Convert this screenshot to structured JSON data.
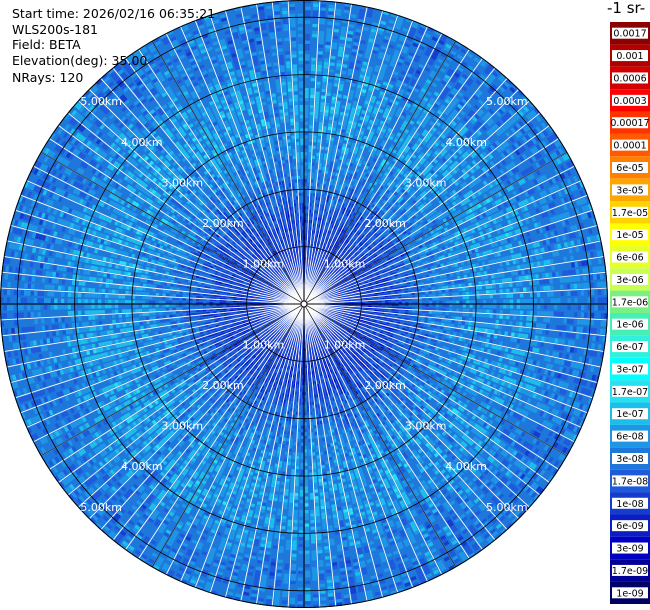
{
  "info": {
    "start_time": "Start time: 2026/02/16 06:35:21",
    "station": "WLS200s-181",
    "field": "Field: BETA",
    "elevation": "Elevation(deg): 35.00",
    "nrays": "NRays: 120"
  },
  "colorbar": {
    "unit_label": "-1 sr-",
    "entries": [
      {
        "label": "0.0017",
        "color": "#8b0000"
      },
      {
        "label": "0.001",
        "color": "#b00000"
      },
      {
        "label": "0.0006",
        "color": "#d20000"
      },
      {
        "label": "0.0003",
        "color": "#ff0000"
      },
      {
        "label": "0.00017",
        "color": "#ff3300"
      },
      {
        "label": "0.0001",
        "color": "#ff5a00"
      },
      {
        "label": "6e-05",
        "color": "#ff8000"
      },
      {
        "label": "3e-05",
        "color": "#ffa500"
      },
      {
        "label": "1.7e-05",
        "color": "#ffd200"
      },
      {
        "label": "1e-05",
        "color": "#ffff00"
      },
      {
        "label": "6e-06",
        "color": "#e6ff2a"
      },
      {
        "label": "3e-06",
        "color": "#c8ff50"
      },
      {
        "label": "1.7e-06",
        "color": "#78f082"
      },
      {
        "label": "1e-06",
        "color": "#46f0b4"
      },
      {
        "label": "6e-07",
        "color": "#32f0dc"
      },
      {
        "label": "3e-07",
        "color": "#00ffff"
      },
      {
        "label": "1.7e-07",
        "color": "#28e1f0"
      },
      {
        "label": "1e-07",
        "color": "#1ebeeb"
      },
      {
        "label": "6e-08",
        "color": "#1e96e6"
      },
      {
        "label": "3e-08",
        "color": "#1e78dc"
      },
      {
        "label": "1.7e-08",
        "color": "#1e5adc"
      },
      {
        "label": "1e-08",
        "color": "#143ccd"
      },
      {
        "label": "6e-09",
        "color": "#0a1ec3"
      },
      {
        "label": "3e-09",
        "color": "#0000c3"
      },
      {
        "label": "1.7e-09",
        "color": "#000096"
      },
      {
        "label": "1e-09",
        "color": "#000064"
      }
    ]
  },
  "chart_data": {
    "type": "heatmap",
    "projection": "polar-ppi",
    "field": "BETA",
    "elevation_deg": 35.0,
    "n_rays": 120,
    "max_range_km": 5.3,
    "rings_km": [
      1.0,
      2.0,
      3.0,
      4.0,
      5.0
    ],
    "ring_labels": [
      "1.00km",
      "2.00km",
      "3.00km",
      "4.00km",
      "5.00km"
    ],
    "spokes_deg": [
      0,
      30,
      60,
      90,
      120,
      150,
      180,
      210,
      240,
      270,
      300,
      330
    ],
    "radial_profile": [
      {
        "range_km": 0.0,
        "class_index": 23
      },
      {
        "range_km": 0.8,
        "class_index": 22
      },
      {
        "range_km": 1.5,
        "class_index": 21
      },
      {
        "range_km": 2.2,
        "class_index": 19
      },
      {
        "range_km": 3.0,
        "class_index": 18
      },
      {
        "range_km": 3.8,
        "class_index": 18
      },
      {
        "range_km": 4.6,
        "class_index": 19
      },
      {
        "range_km": 5.3,
        "class_index": 19
      }
    ],
    "colorbar_range": [
      1e-09,
      0.0017
    ],
    "colorbar_scale": "log"
  }
}
